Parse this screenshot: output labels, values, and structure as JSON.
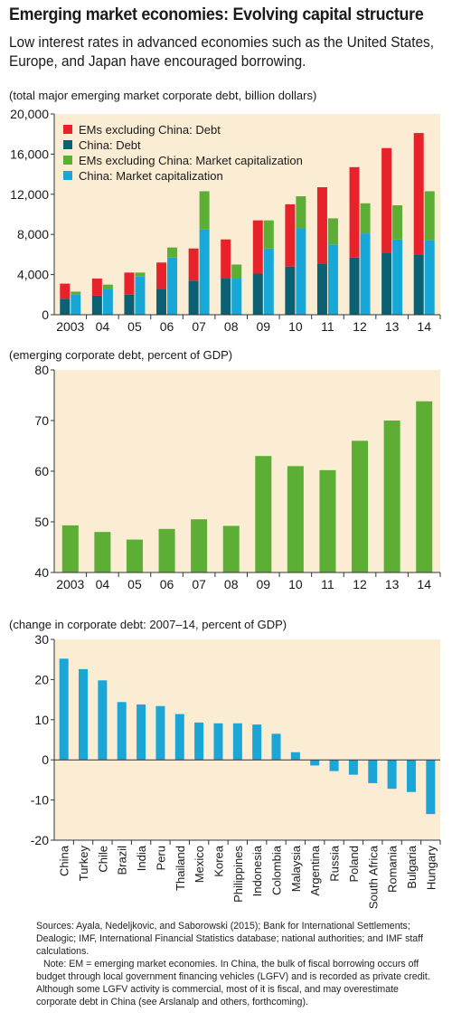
{
  "title": "Emerging market economies: Evolving capital structure",
  "subtitle": "Low interest rates in advanced economies such as the United States, Europe, and Japan have encouraged borrowing.",
  "colors": {
    "panel_bg": "#fbecd4",
    "em_debt": "#e8222b",
    "china_debt": "#0b6172",
    "em_mcap": "#5cae35",
    "china_mcap": "#17a8d8",
    "green_bar": "#5cae35",
    "blue_bar": "#1aa6d6"
  },
  "chart_data": [
    {
      "type": "bar",
      "subtype": "grouped-stacked",
      "ylabel": "(total major emerging market corporate debt, billion dollars)",
      "categories": [
        "2003",
        "04",
        "05",
        "06",
        "07",
        "08",
        "09",
        "10",
        "11",
        "12",
        "13",
        "14"
      ],
      "ylim": [
        0,
        20000
      ],
      "yticks": [
        0,
        4000,
        8000,
        12000,
        16000,
        20000
      ],
      "ytick_labels": [
        "0",
        "4,000",
        "8,000",
        "12,000",
        "16,000",
        "20,000"
      ],
      "legend": "top-left",
      "series": [
        {
          "name": "EMs excluding China: Debt",
          "stack": "debt",
          "values": [
            1500,
            1700,
            2200,
            2600,
            3200,
            3900,
            5300,
            6200,
            7600,
            9000,
            10400,
            12100
          ]
        },
        {
          "name": "China: Debt",
          "stack": "debt",
          "values": [
            1600,
            1900,
            2000,
            2600,
            3400,
            3600,
            4100,
            4800,
            5100,
            5700,
            6200,
            6000
          ]
        },
        {
          "name": "EMs excluding China: Market capitalization",
          "stack": "mcap",
          "values": [
            300,
            400,
            400,
            1000,
            3800,
            1400,
            2800,
            3200,
            2600,
            3000,
            3400,
            4900
          ]
        },
        {
          "name": "China: Market capitalization",
          "stack": "mcap",
          "values": [
            2000,
            2600,
            3800,
            5700,
            8500,
            3600,
            6600,
            8600,
            7000,
            8100,
            7500,
            7400
          ]
        }
      ]
    },
    {
      "type": "bar",
      "ylabel": "(emerging corporate debt, percent of GDP)",
      "categories": [
        "2003",
        "04",
        "05",
        "06",
        "07",
        "08",
        "09",
        "10",
        "11",
        "12",
        "13",
        "14"
      ],
      "values": [
        49.3,
        48.0,
        46.5,
        48.6,
        50.5,
        49.2,
        63.0,
        61.0,
        60.2,
        66.0,
        70.0,
        73.8
      ],
      "ylim": [
        40,
        80
      ],
      "yticks": [
        40,
        50,
        60,
        70,
        80
      ]
    },
    {
      "type": "bar",
      "ylabel": "(change in corporate debt: 2007–14, percent of GDP)",
      "categories": [
        "China",
        "Turkey",
        "Chile",
        "Brazil",
        "India",
        "Peru",
        "Thailand",
        "Mexico",
        "Korea",
        "Philippines",
        "Indonesia",
        "Colombia",
        "Malaysia",
        "Argentina",
        "Russia",
        "Poland",
        "South Africa",
        "Romania",
        "Bulgaria",
        "Hungary"
      ],
      "values": [
        25.2,
        22.6,
        19.8,
        14.4,
        13.8,
        13.4,
        11.4,
        9.3,
        9.1,
        9.1,
        8.8,
        6.5,
        1.9,
        -1.4,
        -2.8,
        -3.7,
        -5.8,
        -7.2,
        -8.0,
        -13.5
      ],
      "ylim": [
        -20,
        30
      ],
      "yticks": [
        -20,
        -10,
        0,
        10,
        20,
        30
      ]
    }
  ],
  "notes": {
    "sources": "Sources: Ayala, Nedeljkovic, and Saborowski (2015); Bank for International Settlements; Dealogic; IMF, International Financial Statistics database; national authorities; and IMF staff calculations.",
    "note": "Note: EM = emerging market economies. In China, the bulk of fiscal borrowing occurs off budget through local government financing vehicles (LGFV) and is recorded as private credit. Although some LGFV activity is commercial, most of it is fiscal, and may overestimate corporate debt in China (see Arslanalp and others, forthcoming)."
  }
}
